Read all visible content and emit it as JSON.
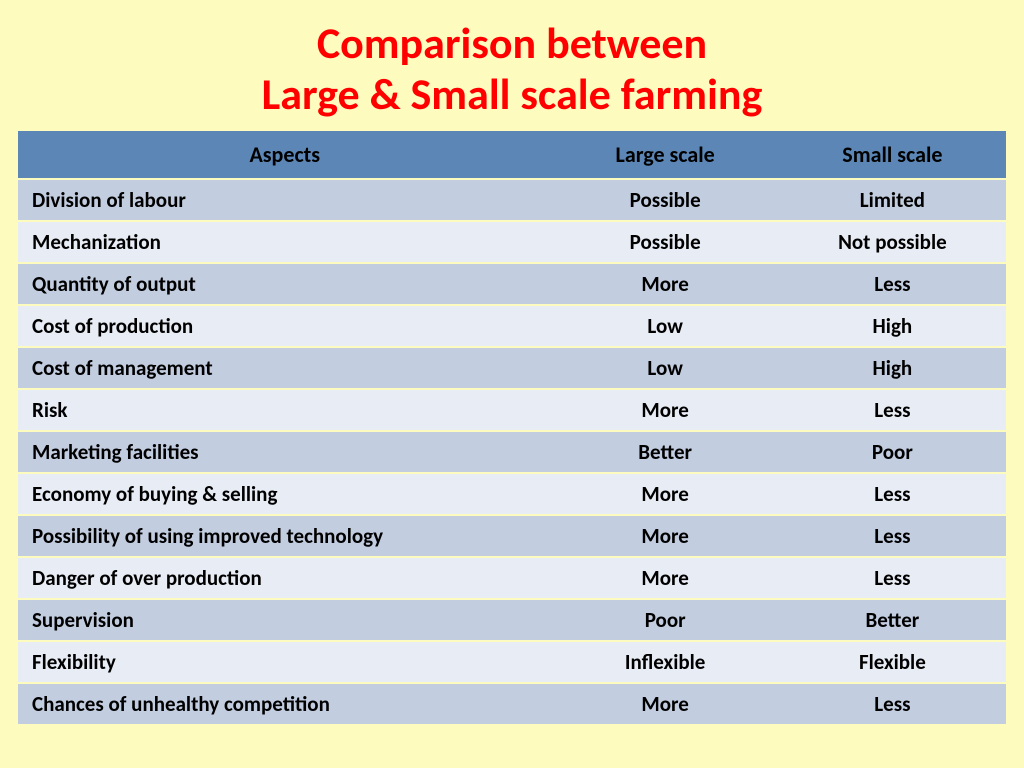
{
  "title_line1": "Comparison between",
  "title_line2": "Large & Small scale farming",
  "table": {
    "header_bg": "#5b86b6",
    "header_color": "#000000",
    "row_colors": [
      "#c2cde0",
      "#e8ecf4"
    ],
    "columns": [
      "Aspects",
      "Large scale",
      "Small scale"
    ],
    "rows": [
      [
        "Division of labour",
        "Possible",
        "Limited"
      ],
      [
        "Mechanization",
        "Possible",
        "Not possible"
      ],
      [
        "Quantity of output",
        "More",
        "Less"
      ],
      [
        "Cost of production",
        "Low",
        "High"
      ],
      [
        "Cost of management",
        "Low",
        "High"
      ],
      [
        "Risk",
        "More",
        "Less"
      ],
      [
        "Marketing facilities",
        "Better",
        "Poor"
      ],
      [
        "Economy of buying & selling",
        "More",
        "Less"
      ],
      [
        "Possibility of using improved technology",
        "More",
        "Less"
      ],
      [
        "Danger of over production",
        "More",
        "Less"
      ],
      [
        "Supervision",
        "Poor",
        "Better"
      ],
      [
        "Flexibility",
        "Inflexible",
        "Flexible"
      ],
      [
        "Chances of unhealthy competition",
        "More",
        "Less"
      ]
    ]
  }
}
